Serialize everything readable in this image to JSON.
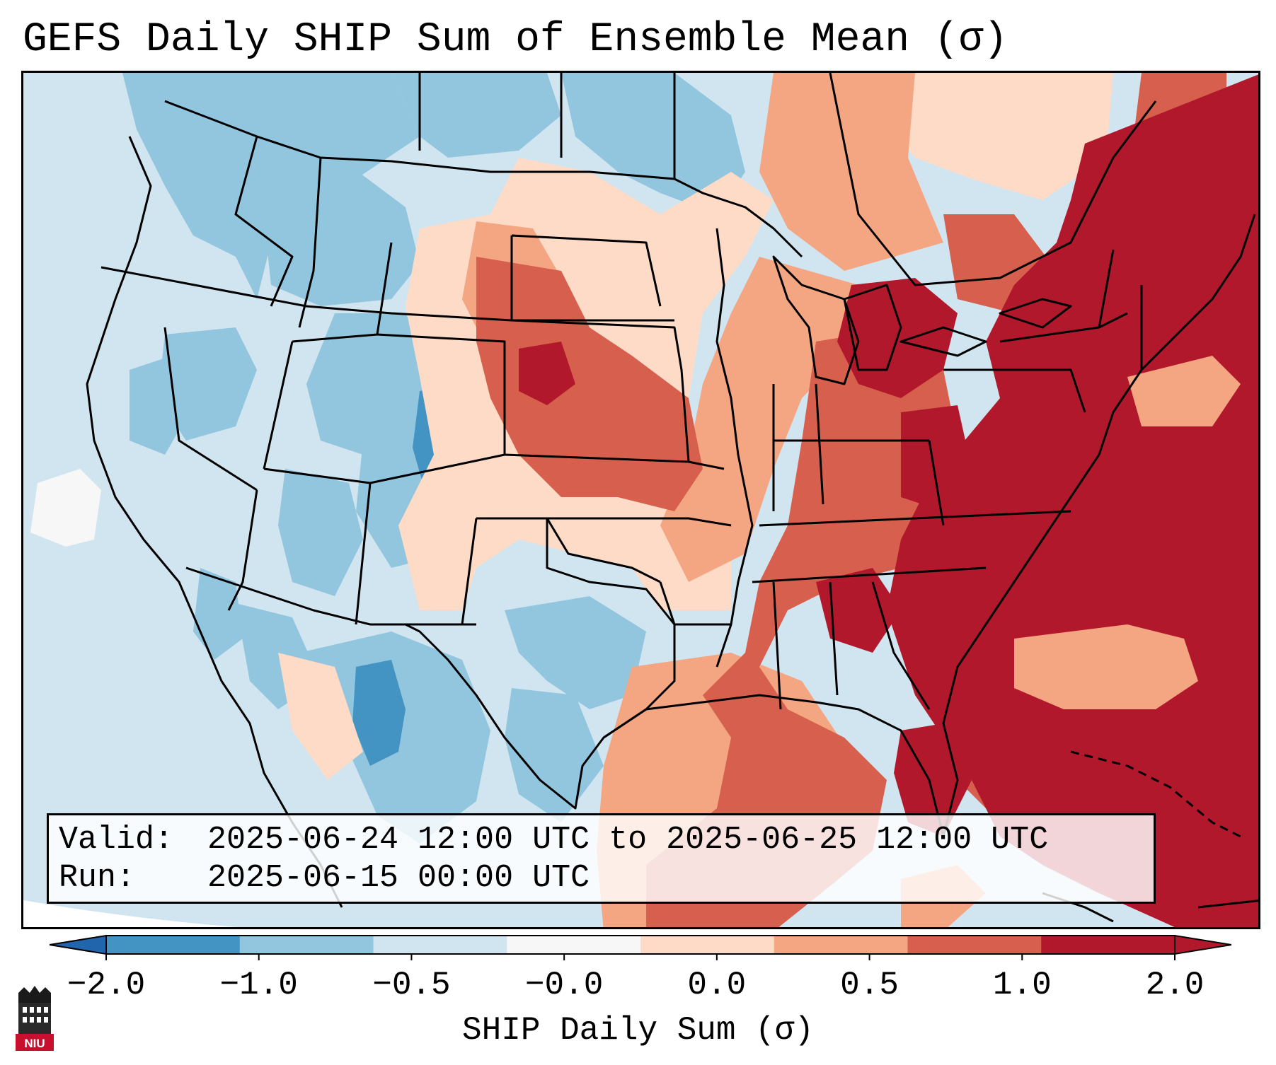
{
  "title": "GEFS Daily SHIP Sum of Ensemble Mean (σ)",
  "info": {
    "valid_label": "Valid:",
    "valid_value": "2025-06-24 12:00 UTC to 2025-06-25 12:00 UTC",
    "run_label": "Run:",
    "run_value": "2025-06-15 00:00 UTC"
  },
  "colorbar": {
    "label": "SHIP Daily Sum (σ)",
    "ticks": [
      "−2.0",
      "−1.0",
      "−0.5",
      "−0.0",
      "0.0",
      "0.5",
      "1.0",
      "2.0"
    ],
    "colors": [
      "#4393c3",
      "#92c5de",
      "#d1e5f0",
      "#f7f7f7",
      "#fddbc7",
      "#f4a582",
      "#d6604d",
      "#b2182b"
    ],
    "under_color": "#2166ac",
    "over_color": "#b2182b"
  },
  "logo": {
    "text": "NIU"
  }
}
